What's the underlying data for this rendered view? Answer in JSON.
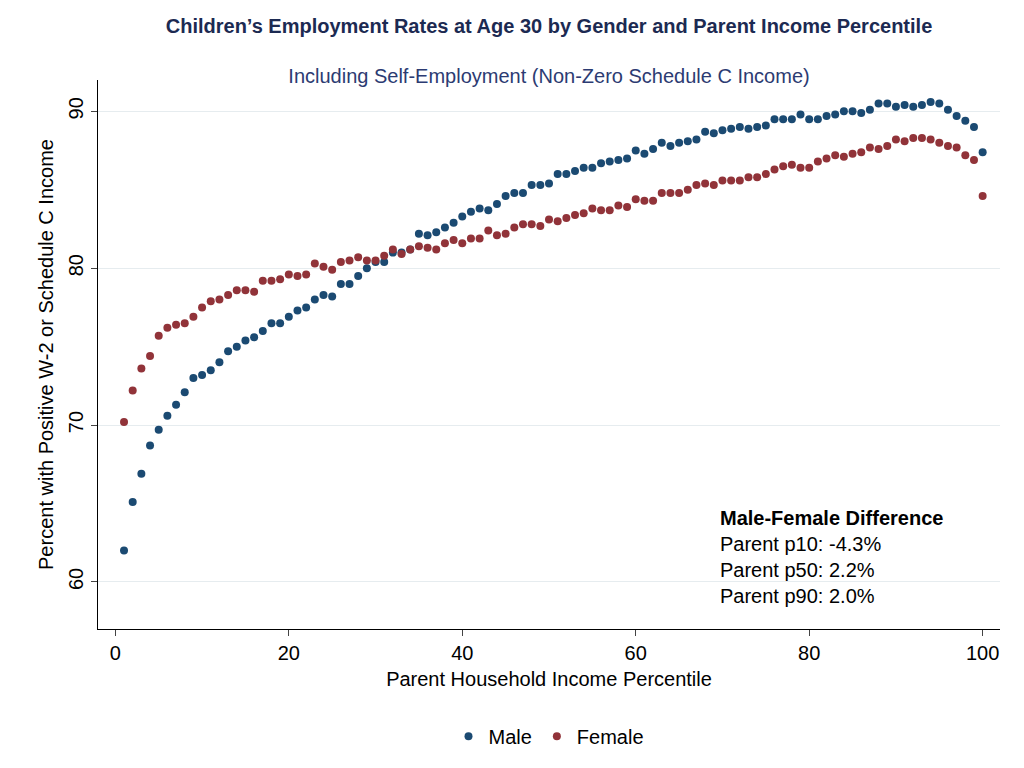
{
  "chart_data": {
    "type": "scatter",
    "title": "Children’s Employment Rates at Age 30 by Gender and Parent Income Percentile",
    "subtitle": "Including Self-Employment (Non-Zero Schedule C Income)",
    "x_label": "Parent Household Income Percentile",
    "y_label": "Percent with Positive W-2 or Schedule C Income",
    "x": [
      1,
      2,
      3,
      4,
      5,
      6,
      7,
      8,
      9,
      10,
      11,
      12,
      13,
      14,
      15,
      16,
      17,
      18,
      19,
      20,
      21,
      22,
      23,
      24,
      25,
      26,
      27,
      28,
      29,
      30,
      31,
      32,
      33,
      34,
      35,
      36,
      37,
      38,
      39,
      40,
      41,
      42,
      43,
      44,
      45,
      46,
      47,
      48,
      49,
      50,
      51,
      52,
      53,
      54,
      55,
      56,
      57,
      58,
      59,
      60,
      61,
      62,
      63,
      64,
      65,
      66,
      67,
      68,
      69,
      70,
      71,
      72,
      73,
      74,
      75,
      76,
      77,
      78,
      79,
      80,
      81,
      82,
      83,
      84,
      85,
      86,
      87,
      88,
      89,
      90,
      91,
      92,
      93,
      94,
      95,
      96,
      97,
      98,
      99,
      100
    ],
    "series": [
      {
        "name": "Male",
        "color": "#1b4a72",
        "marker": "circle",
        "values": [
          62.0,
          65.1,
          66.9,
          68.7,
          69.7,
          70.6,
          71.3,
          72.1,
          73.0,
          73.2,
          73.5,
          74.0,
          74.7,
          75.0,
          75.4,
          75.6,
          76.0,
          76.5,
          76.5,
          76.9,
          77.3,
          77.5,
          78.0,
          78.3,
          78.2,
          79.0,
          79.0,
          79.5,
          80.0,
          80.4,
          80.4,
          81.0,
          81.0,
          81.2,
          82.2,
          82.1,
          82.3,
          82.6,
          82.9,
          83.3,
          83.6,
          83.8,
          83.7,
          84.1,
          84.6,
          84.8,
          84.8,
          85.3,
          85.3,
          85.4,
          86.0,
          86.0,
          86.2,
          86.4,
          86.4,
          86.7,
          86.8,
          86.9,
          87.0,
          87.5,
          87.3,
          87.6,
          88.0,
          87.8,
          88.0,
          88.1,
          88.2,
          88.7,
          88.6,
          88.8,
          88.9,
          89.0,
          88.9,
          89.0,
          89.1,
          89.5,
          89.5,
          89.5,
          89.8,
          89.5,
          89.5,
          89.7,
          89.8,
          90.0,
          90.0,
          89.9,
          90.1,
          90.5,
          90.5,
          90.3,
          90.4,
          90.3,
          90.4,
          90.6,
          90.5,
          90.1,
          89.7,
          89.4,
          89.0,
          87.4
        ]
      },
      {
        "name": "Female",
        "color": "#913339",
        "marker": "circle",
        "values": [
          70.2,
          72.2,
          73.6,
          74.4,
          75.7,
          76.2,
          76.4,
          76.5,
          76.9,
          77.5,
          77.9,
          78.0,
          78.3,
          78.6,
          78.6,
          78.5,
          79.2,
          79.2,
          79.3,
          79.6,
          79.5,
          79.6,
          80.3,
          80.1,
          79.9,
          80.4,
          80.5,
          80.7,
          80.5,
          80.5,
          80.8,
          81.2,
          80.9,
          81.2,
          81.4,
          81.3,
          81.2,
          81.6,
          81.8,
          81.6,
          81.9,
          81.9,
          82.4,
          82.1,
          82.2,
          82.6,
          82.8,
          82.8,
          82.7,
          83.1,
          83.0,
          83.2,
          83.4,
          83.5,
          83.8,
          83.7,
          83.7,
          84.0,
          83.9,
          84.4,
          84.3,
          84.3,
          84.8,
          84.8,
          84.8,
          85.0,
          85.3,
          85.4,
          85.3,
          85.6,
          85.6,
          85.6,
          85.8,
          85.8,
          86.0,
          86.3,
          86.5,
          86.6,
          86.4,
          86.4,
          86.8,
          87.0,
          87.2,
          87.1,
          87.3,
          87.4,
          87.7,
          87.6,
          87.8,
          88.2,
          88.1,
          88.3,
          88.3,
          88.2,
          88.0,
          87.8,
          87.7,
          87.2,
          86.9,
          84.6
        ]
      }
    ],
    "xlim": [
      -2,
      102
    ],
    "ylim": [
      57,
      92
    ],
    "xticks": [
      0,
      20,
      40,
      60,
      80,
      100
    ],
    "yticks": [
      60,
      70,
      80,
      90
    ],
    "grid": true,
    "legend": "bottom",
    "annotation": {
      "title": "Male-Female Difference",
      "lines": [
        "Parent p10: -4.3%",
        "Parent p50: 2.2%",
        "Parent p90: 2.0%"
      ]
    }
  }
}
